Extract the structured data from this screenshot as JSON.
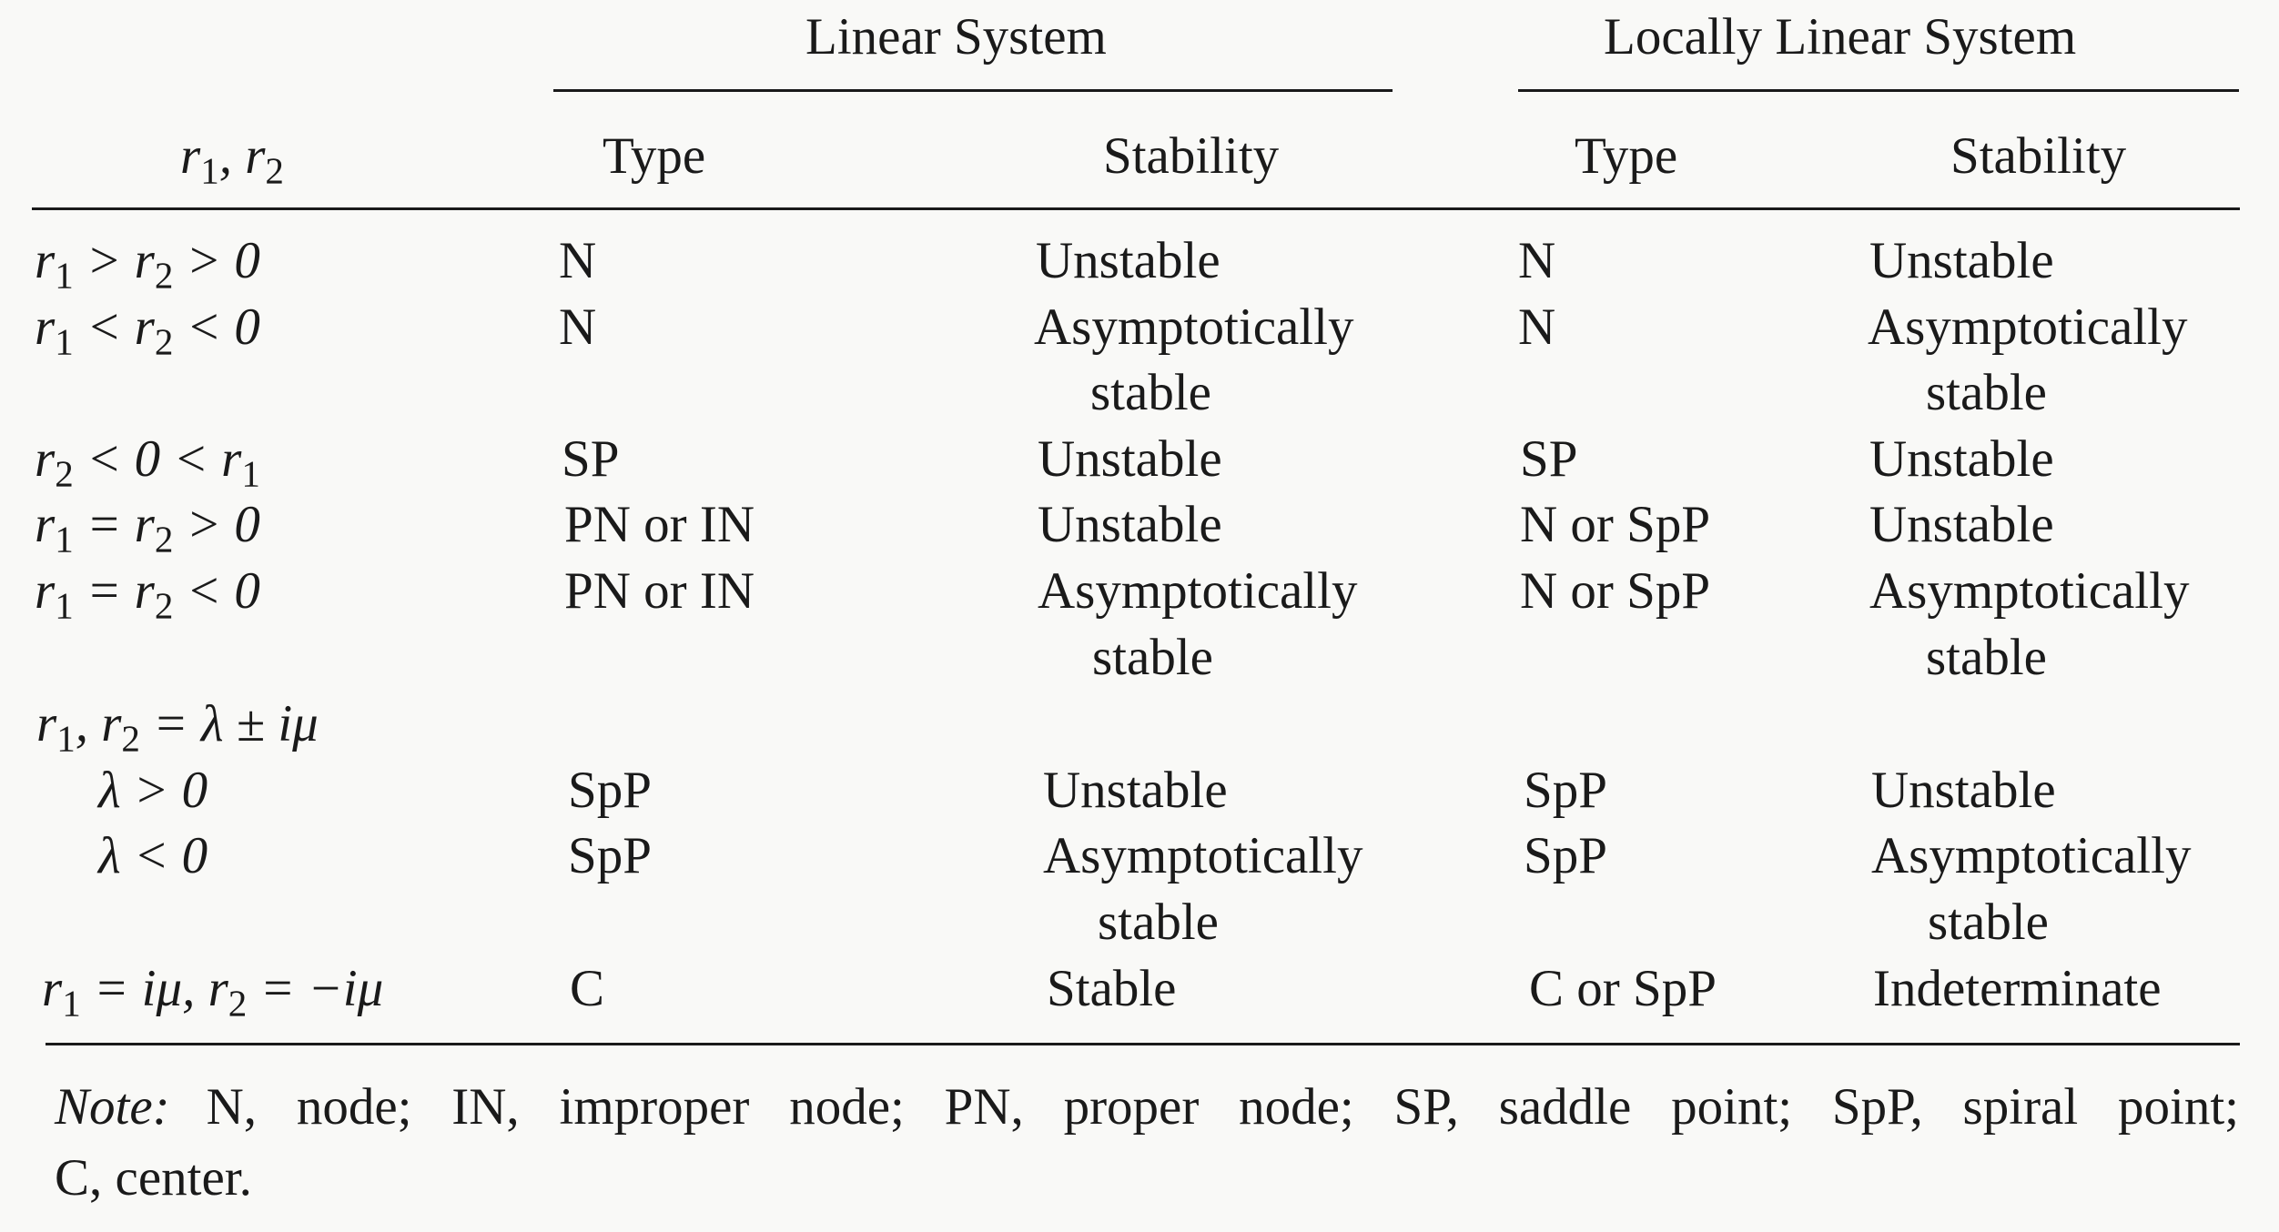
{
  "header": {
    "group_linear": "Linear System",
    "group_locally_linear": "Locally Linear System",
    "col_roots_base": "r",
    "col_roots_sub1": "1",
    "col_roots_sep": ", r",
    "col_roots_sub2": "2",
    "col_type": "Type",
    "col_stability": "Stability"
  },
  "rows": [
    {
      "cond": {
        "a": "r",
        "s1": "1",
        "b": " > r",
        "s2": "2",
        "c": " > 0"
      },
      "lin_type": "N",
      "lin_stab": "Unstable",
      "loc_type": "N",
      "loc_stab": "Unstable"
    },
    {
      "cond": {
        "a": "r",
        "s1": "1",
        "b": " < r",
        "s2": "2",
        "c": " < 0"
      },
      "lin_type": "N",
      "lin_stab": "Asymptotically",
      "lin_stab2": "stable",
      "loc_type": "N",
      "loc_stab": "Asymptotically",
      "loc_stab2": "stable"
    },
    {
      "cond": {
        "a": "r",
        "s1": "2",
        "b": " < 0 < r",
        "s2": "1",
        "c": ""
      },
      "lin_type": "SP",
      "lin_stab": "Unstable",
      "loc_type": "SP",
      "loc_stab": "Unstable"
    },
    {
      "cond": {
        "a": "r",
        "s1": "1",
        "b": " = r",
        "s2": "2",
        "c": " > 0"
      },
      "lin_type": "PN or IN",
      "lin_stab": "Unstable",
      "loc_type": "N or SpP",
      "loc_stab": "Unstable"
    },
    {
      "cond": {
        "a": "r",
        "s1": "1",
        "b": " = r",
        "s2": "2",
        "c": " < 0"
      },
      "lin_type": "PN or IN",
      "lin_stab": "Asymptotically",
      "lin_stab2": "stable",
      "loc_type": "N or SpP",
      "loc_stab": "Asymptotically",
      "loc_stab2": "stable"
    },
    {
      "cond": {
        "a": "r",
        "s1": "1",
        "b": ", r",
        "s2": "2",
        "c": " = λ ± iμ"
      }
    },
    {
      "cond": {
        "a": "λ > 0"
      },
      "lin_type": "SpP",
      "lin_stab": "Unstable",
      "loc_type": "SpP",
      "loc_stab": "Unstable"
    },
    {
      "cond": {
        "a": "λ < 0"
      },
      "lin_type": "SpP",
      "lin_stab": "Asymptotically",
      "lin_stab2": "stable",
      "loc_type": "SpP",
      "loc_stab": "Asymptotically",
      "loc_stab2": "stable"
    },
    {
      "cond": {
        "a": "r",
        "s1": "1",
        "b": " = iμ, r",
        "s2": "2",
        "c": " = −iμ"
      },
      "lin_type": "C",
      "lin_stab": "Stable",
      "loc_type": "C or SpP",
      "loc_stab": "Indeterminate"
    }
  ],
  "note": {
    "label": "Note:",
    "line1": "N, node; IN, improper node; PN, proper node; SP, saddle point; SpP, spiral point;",
    "line2": "C, center."
  }
}
